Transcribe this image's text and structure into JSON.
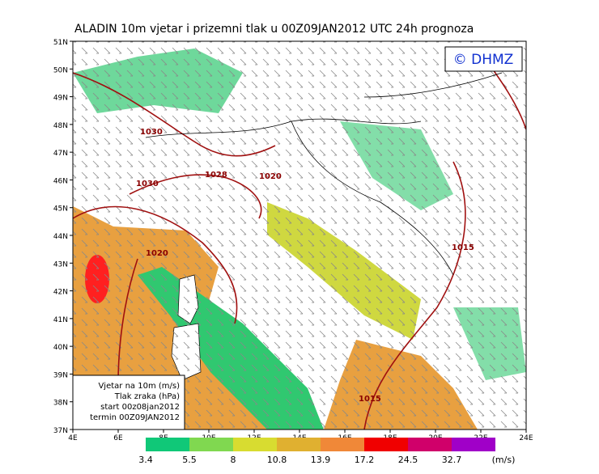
{
  "header": {
    "title": "ALADIN 10m vjetar i prizemni tlak u 00Z09JAN2012 UTC 24h prognoza"
  },
  "logo": "© DHMZ",
  "axes": {
    "lat_labels": [
      "51N",
      "50N",
      "49N",
      "48N",
      "47N",
      "46N",
      "45N",
      "44N",
      "43N",
      "42N",
      "41N",
      "40N",
      "39N",
      "38N",
      "37N"
    ],
    "lon_labels": [
      "4E",
      "6E",
      "8E",
      "10E",
      "12E",
      "14E",
      "16E",
      "18E",
      "20E",
      "22E",
      "24E"
    ]
  },
  "info_box": [
    "Vjetar na 10m (m/s)",
    "Tlak zraka (hPa)",
    "start 00z08jan2012",
    "termin 00Z09JAN2012"
  ],
  "isobar_labels": [
    "1030",
    "1030",
    "1028",
    "1020",
    "1020",
    "1015",
    "1015"
  ],
  "colorbar": {
    "thresholds": [
      3.4,
      5.5,
      8,
      10.8,
      13.9,
      17.2,
      24.5,
      32.7
    ],
    "unit": "(m/s)",
    "colors": [
      "#10c878",
      "#80d850",
      "#d8dc30",
      "#e0b030",
      "#f08838",
      "#f00000",
      "#d0006a",
      "#a000c8"
    ]
  }
}
